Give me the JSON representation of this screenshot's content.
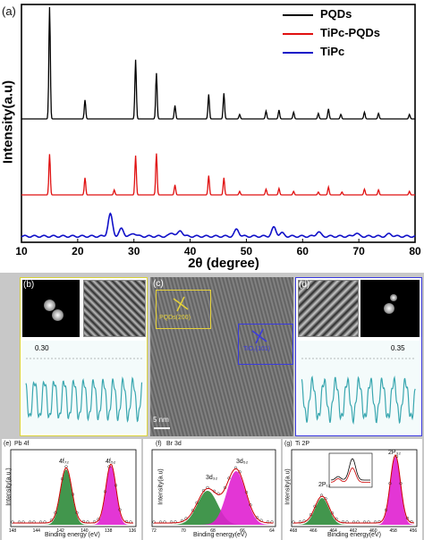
{
  "figure": {
    "panel_a": {
      "label": "(a)",
      "ylabel": "Intensity(a.u)",
      "xlabel": "2θ (degree)"
    },
    "panel_b": {
      "label": "(b)",
      "spacing": "0.30"
    },
    "panel_c": {
      "label": "(c)",
      "ann1": "PQDs(200)",
      "ann2": "TiO₂(101)",
      "scale": "5 nm"
    },
    "panel_d": {
      "label": "(d)",
      "spacing": "0.35"
    },
    "panel_e": {
      "label": "(e)",
      "title": "Pb 4f",
      "peak1": "4f₇₂",
      "peak2": "4f₅₂",
      "ylabel": "Intensity(a.u.)",
      "xlabel": "Binding energy (eV)",
      "ticks": [
        "148",
        "144",
        "142",
        "140",
        "138",
        "136"
      ]
    },
    "panel_f": {
      "label": "(f)",
      "title": "Br 3d",
      "peak1": "3d₃₂",
      "peak2": "3d₅₂",
      "ylabel": "Intensity(a.u)",
      "xlabel": "Binding energy(eV)",
      "ticks": [
        "72",
        "70",
        "68",
        "66",
        "64"
      ]
    },
    "panel_g": {
      "label": "(g)",
      "title": "Ti 2P",
      "peak1": "2P₁₂",
      "peak2": "2P₃₂",
      "ylabel": "Intensity(a.u)",
      "xlabel": "Binding energy(eV)",
      "ticks": [
        "468",
        "466",
        "464",
        "462",
        "460",
        "458",
        "456"
      ]
    }
  },
  "chart_data": [
    {
      "type": "line",
      "xlabel": "2θ (degree)",
      "ylabel": "Intensity(a.u)",
      "xlim": [
        10,
        80
      ],
      "xticks": [
        "10",
        "20",
        "30",
        "40",
        "50",
        "60",
        "70",
        "80"
      ],
      "legend_position": "top-right",
      "series": [
        {
          "name": "PQDs",
          "color": "#000000",
          "peaks": [
            [
              15.0,
              1.0
            ],
            [
              21.3,
              0.17
            ],
            [
              30.3,
              0.53
            ],
            [
              34.0,
              0.41
            ],
            [
              37.3,
              0.12
            ],
            [
              43.3,
              0.22
            ],
            [
              46.0,
              0.23
            ],
            [
              48.8,
              0.04
            ],
            [
              53.5,
              0.07
            ],
            [
              55.8,
              0.08
            ],
            [
              58.4,
              0.06
            ],
            [
              62.8,
              0.05
            ],
            [
              64.6,
              0.09
            ],
            [
              66.8,
              0.04
            ],
            [
              71.0,
              0.06
            ],
            [
              73.5,
              0.05
            ],
            [
              79.0,
              0.04
            ]
          ]
        },
        {
          "name": "TiPc-PQDs",
          "color": "#e01010",
          "peaks": [
            [
              15.0,
              0.57
            ],
            [
              21.3,
              0.24
            ],
            [
              26.5,
              0.07
            ],
            [
              30.3,
              0.55
            ],
            [
              34.0,
              0.58
            ],
            [
              37.3,
              0.14
            ],
            [
              43.3,
              0.27
            ],
            [
              46.0,
              0.24
            ],
            [
              48.8,
              0.05
            ],
            [
              53.5,
              0.08
            ],
            [
              55.8,
              0.09
            ],
            [
              58.4,
              0.05
            ],
            [
              62.8,
              0.04
            ],
            [
              64.6,
              0.11
            ],
            [
              67.0,
              0.04
            ],
            [
              71.0,
              0.08
            ],
            [
              73.5,
              0.07
            ],
            [
              79.0,
              0.05
            ]
          ]
        },
        {
          "name": "TiPc",
          "color": "#1010c8",
          "peaks": [
            [
              25.8,
              0.35
            ],
            [
              27.8,
              0.12
            ],
            [
              30.0,
              0.05
            ],
            [
              36.8,
              0.06
            ],
            [
              38.3,
              0.09
            ],
            [
              48.3,
              0.11
            ],
            [
              54.9,
              0.14
            ],
            [
              56.3,
              0.05
            ],
            [
              62.8,
              0.07
            ],
            [
              69.5,
              0.05
            ],
            [
              75.5,
              0.04
            ]
          ]
        }
      ]
    }
  ]
}
